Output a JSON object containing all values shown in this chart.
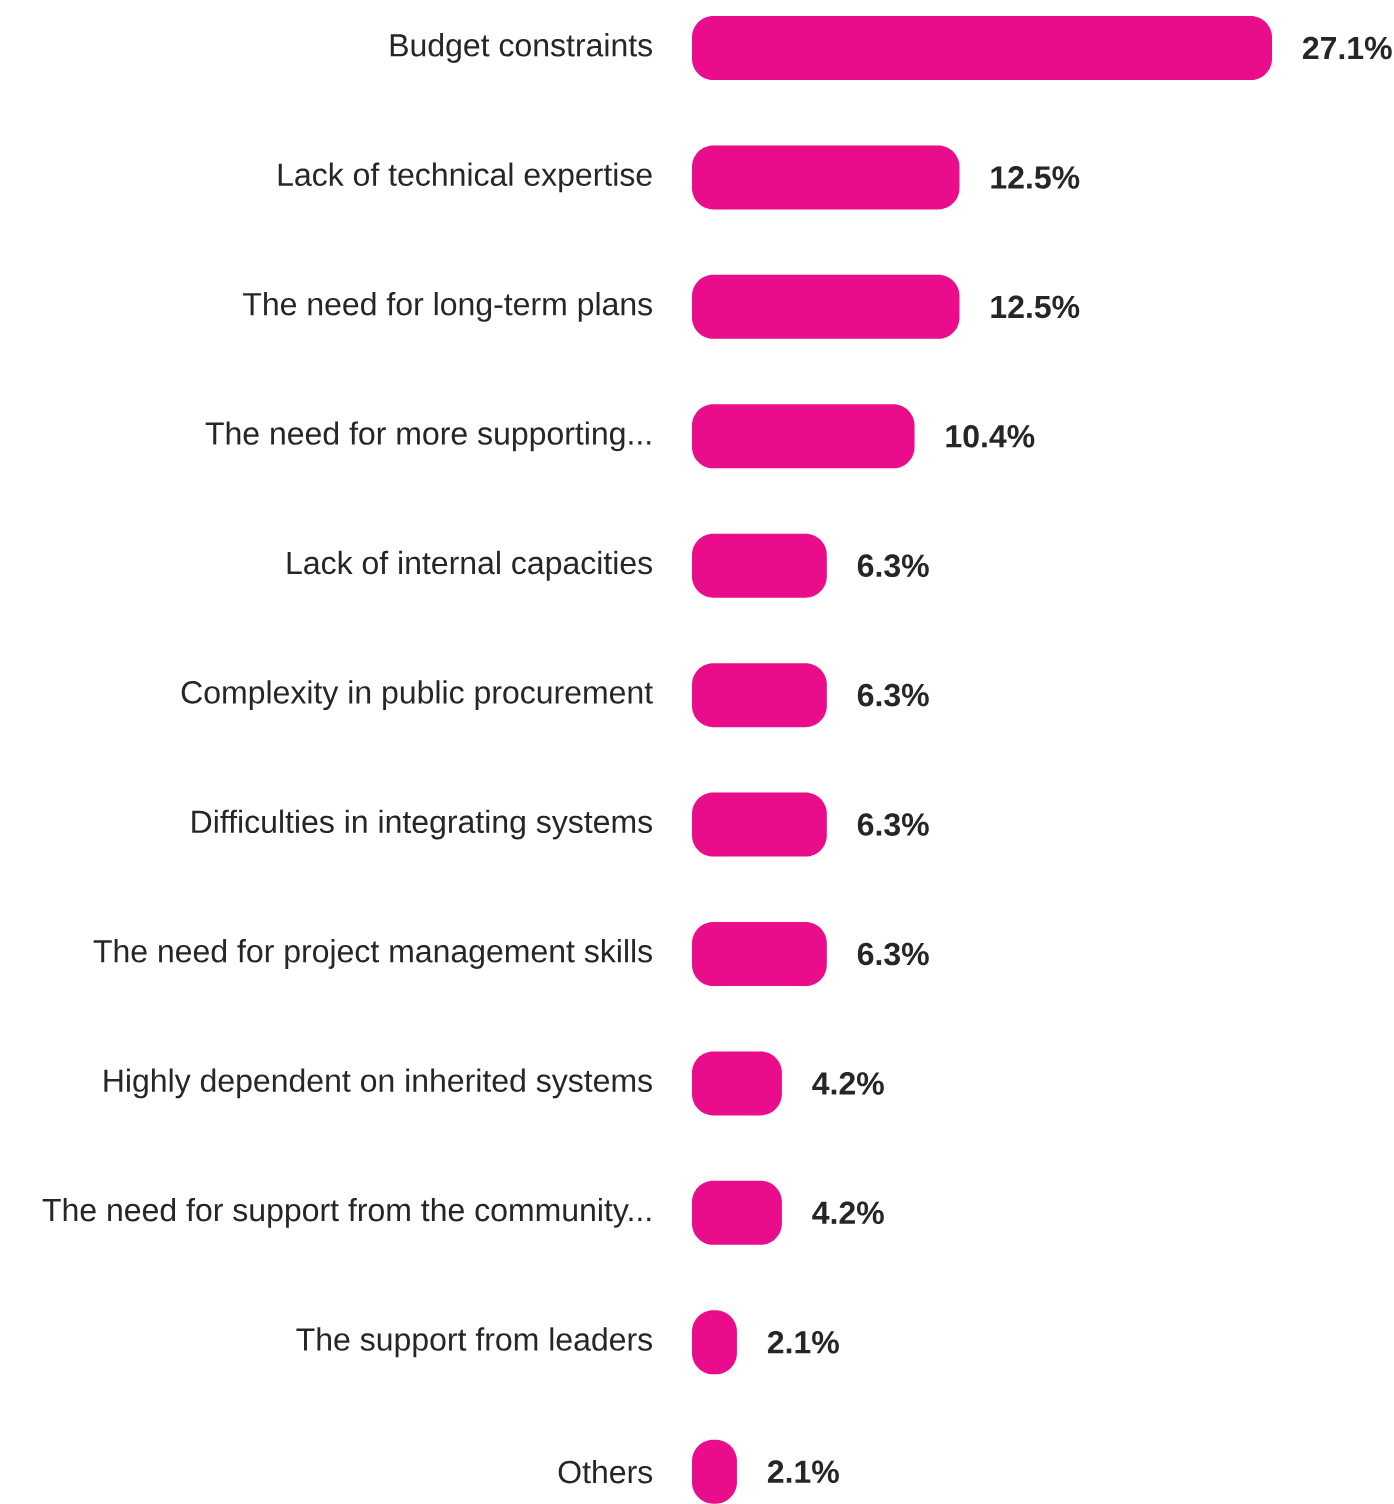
{
  "chart_data": {
    "type": "bar",
    "orientation": "horizontal",
    "color": "#e90d8b",
    "categories": [
      "Budget constraints",
      "Lack of technical expertise",
      "The need for long-term plans",
      "The need for more supporting...",
      "Lack of internal capacities",
      "Complexity in public procurement",
      "Difficulties in integrating systems",
      "The need for project management skills",
      "Highly dependent on inherited systems",
      "The need for support from the community...",
      "The support from leaders",
      "Others"
    ],
    "values": [
      27.1,
      12.5,
      12.5,
      10.4,
      6.3,
      6.3,
      6.3,
      6.3,
      4.2,
      4.2,
      2.1,
      2.1
    ],
    "value_labels": [
      "27.1%",
      "12.5%",
      "12.5%",
      "10.4%",
      "6.3%",
      "6.3%",
      "6.3%",
      "6.3%",
      "4.2%",
      "4.2%",
      "2.1%",
      "2.1%"
    ]
  }
}
